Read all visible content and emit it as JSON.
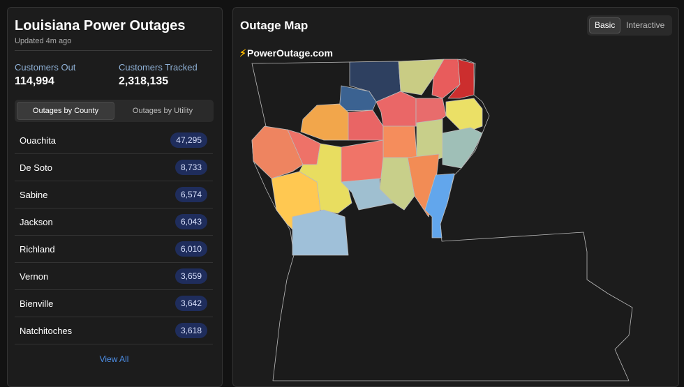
{
  "header": {
    "title": "Louisiana Power Outages",
    "updated": "Updated 4m ago"
  },
  "stats": [
    {
      "label": "Customers Out",
      "value": "114,994"
    },
    {
      "label": "Customers Tracked",
      "value": "2,318,135"
    }
  ],
  "tabs": [
    "Outages by County",
    "Outages by Utility"
  ],
  "table": {
    "rows": [
      [
        "Ouachita",
        "47,295"
      ],
      [
        "De Soto",
        "8,733"
      ],
      [
        "Sabine",
        "6,574"
      ],
      [
        "Jackson",
        "6,043"
      ],
      [
        "Richland",
        "6,010"
      ],
      [
        "Vernon",
        "3,659"
      ],
      [
        "Bienville",
        "3,642"
      ],
      [
        "Natchitoches",
        "3,618"
      ]
    ]
  },
  "view_all": "View All",
  "map": {
    "title": "Outage Map",
    "modes": [
      "Basic",
      "Interactive"
    ],
    "brand": "PowerOutage.com"
  }
}
